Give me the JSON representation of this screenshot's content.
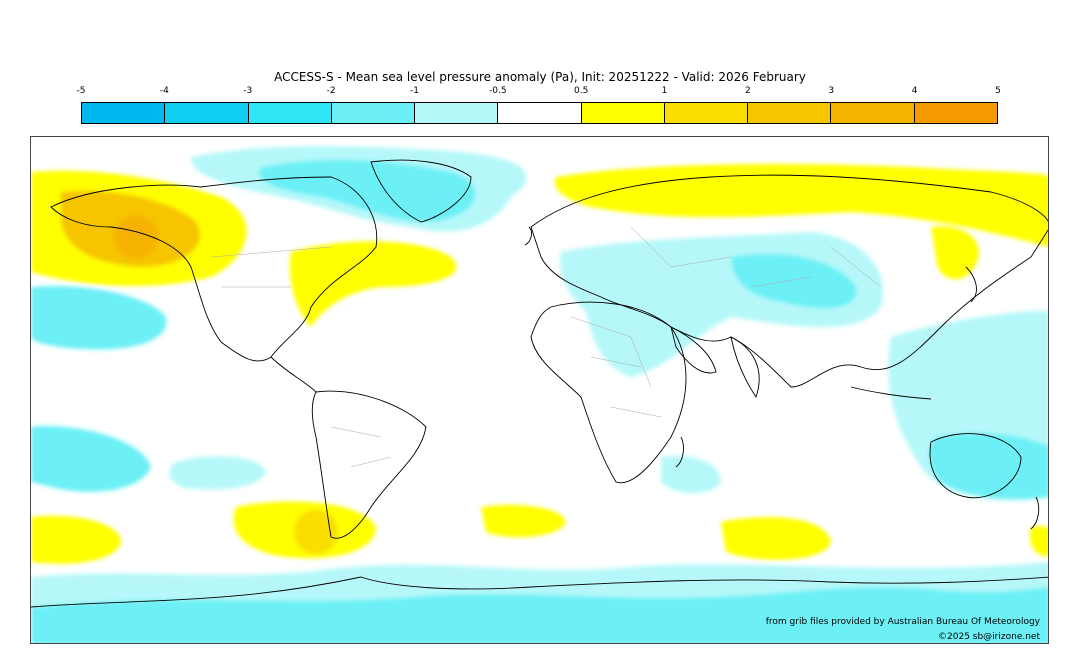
{
  "title": "ACCESS-S - Mean sea level pressure anomaly (Pa), Init: 20251222 - Valid: 2026 February",
  "legend": {
    "ticks": [
      "-5",
      "-4",
      "-3",
      "-2",
      "-1",
      "-0.5",
      "0.5",
      "1",
      "2",
      "3",
      "4",
      "5"
    ],
    "colors": [
      "#00b8f0",
      "#10cdf2",
      "#2ee6f6",
      "#6cf0f6",
      "#b6f8f9",
      "#ffffff",
      "#ffff00",
      "#f9de00",
      "#f6c500",
      "#f5b200",
      "#f59a00"
    ]
  },
  "credits": {
    "source": "from grib files provided by Australian Bureau Of Meteorology",
    "copyright": "©2025 sb@irizone.net"
  }
}
